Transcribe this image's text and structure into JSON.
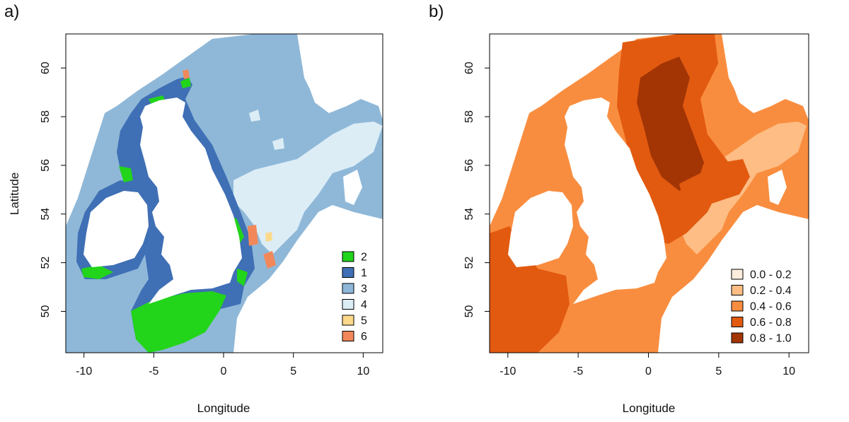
{
  "figure": {
    "panels": [
      {
        "tag": "a)",
        "xlabel": "Longitude",
        "ylabel": "Latitude",
        "x_ticks": [
          "-10",
          "-5",
          "0",
          "5",
          "10"
        ],
        "y_ticks": [
          "50",
          "52",
          "54",
          "56",
          "58",
          "60"
        ],
        "legend": [
          {
            "label": "2",
            "color": "#22d41a"
          },
          {
            "label": "1",
            "color": "#3f6fb5"
          },
          {
            "label": "3",
            "color": "#8fb8d8"
          },
          {
            "label": "4",
            "color": "#dcedf6"
          },
          {
            "label": "5",
            "color": "#fcd98a"
          },
          {
            "label": "6",
            "color": "#f2885a"
          }
        ]
      },
      {
        "tag": "b)",
        "xlabel": "Longitude",
        "ylabel": "",
        "x_ticks": [
          "-10",
          "-5",
          "0",
          "5",
          "10"
        ],
        "y_ticks": [
          "50",
          "52",
          "54",
          "56",
          "58",
          "60"
        ],
        "legend": [
          {
            "label": "0.0 - 0.2",
            "color": "#feeddc"
          },
          {
            "label": "0.2 - 0.4",
            "color": "#fdbd84"
          },
          {
            "label": "0.4 - 0.6",
            "color": "#f98d3f"
          },
          {
            "label": "0.6 - 0.8",
            "color": "#e25a10"
          },
          {
            "label": "0.8 - 1.0",
            "color": "#a33505"
          }
        ]
      }
    ]
  },
  "chart_data": {
    "type": "heatmap",
    "xlim": [
      -11.3,
      11.4
    ],
    "ylim": [
      48.3,
      61.4
    ],
    "x_tick_values": [
      -10,
      -5,
      0,
      5,
      10
    ],
    "y_tick_values": [
      50,
      52,
      54,
      56,
      58,
      60
    ]
  }
}
